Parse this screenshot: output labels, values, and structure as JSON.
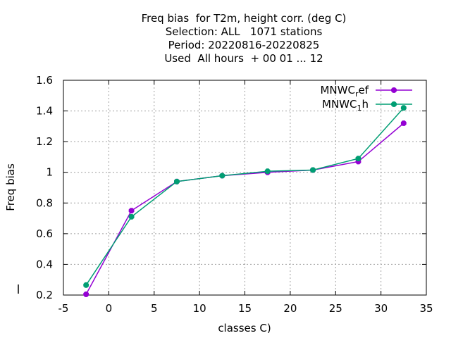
{
  "title_lines": [
    "Freq bias  for T2m, height corr. (deg C)",
    "Selection: ALL   1071 stations",
    "Period: 20220816-20220825",
    "Used  All hours  + 00 01 ... 12"
  ],
  "chart_data": {
    "type": "line",
    "xlabel": "classes C)",
    "ylabel": "Freq bias",
    "xlim": [
      -5,
      35
    ],
    "ylim": [
      0.2,
      1.6
    ],
    "xticks": [
      -5,
      0,
      5,
      10,
      15,
      20,
      25,
      30,
      35
    ],
    "yticks": [
      0.2,
      0.4,
      0.6,
      0.8,
      1.0,
      1.2,
      1.4,
      1.6
    ],
    "ytick_labels": [
      "0.2",
      "0.4",
      "0.6",
      "0.8",
      "1",
      "1.2",
      "1.4",
      "1.6"
    ],
    "grid": true,
    "legend_position": "top-right",
    "series": [
      {
        "name": "MNWC_ref",
        "legend_main": "MNWC",
        "legend_sub": "r",
        "legend_tail": "ef",
        "color": "#9400d3",
        "x": [
          -2.5,
          2.5,
          7.5,
          12.5,
          17.5,
          22.5,
          27.5,
          32.5
        ],
        "y": [
          0.205,
          0.75,
          0.94,
          0.978,
          1.0,
          1.015,
          1.07,
          1.32
        ]
      },
      {
        "name": "MNWC_1h",
        "legend_main": "MNWC",
        "legend_sub": "1",
        "legend_tail": "h",
        "color": "#009e73",
        "x": [
          -2.5,
          2.5,
          7.5,
          12.5,
          17.5,
          22.5,
          27.5,
          32.5
        ],
        "y": [
          0.265,
          0.71,
          0.94,
          0.978,
          1.007,
          1.015,
          1.09,
          1.42
        ]
      }
    ]
  }
}
